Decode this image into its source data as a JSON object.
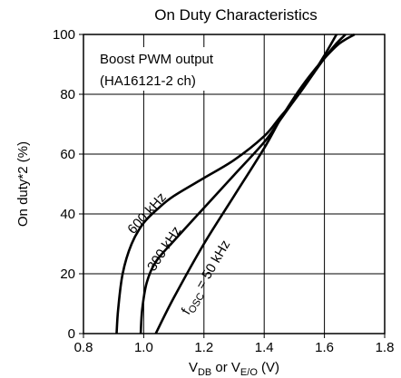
{
  "chart_data": {
    "type": "line",
    "title": "On Duty Characteristics",
    "xlabel": {
      "main": "V",
      "sub1": "DB",
      "mid": " or V",
      "sub2": "E/O",
      "unit": " (V)"
    },
    "ylabel": "On duty*2 (%)",
    "annotation": [
      "Boost PWM output",
      "(HA16121-2 ch)"
    ],
    "xlim": [
      0.8,
      1.8
    ],
    "ylim": [
      0,
      100
    ],
    "xticks": [
      "0.8",
      "1.0",
      "1.2",
      "1.4",
      "1.6",
      "1.8"
    ],
    "yticks": [
      "0",
      "20",
      "40",
      "60",
      "80",
      "100"
    ],
    "grid": true,
    "series": [
      {
        "name": "600 kHz",
        "label_text": "600 kHz",
        "x": [
          0.91,
          0.915,
          0.93,
          0.96,
          1.0,
          1.05,
          1.1,
          1.2,
          1.3,
          1.4,
          1.45,
          1.5,
          1.55,
          1.6,
          1.64
        ],
        "y": [
          0,
          8,
          20,
          30,
          37,
          42,
          46,
          52,
          58,
          66,
          72,
          78,
          85,
          93,
          100
        ]
      },
      {
        "name": "300 kHz",
        "label_text": "300 kHz",
        "x": [
          0.99,
          0.995,
          1.01,
          1.04,
          1.1,
          1.2,
          1.3,
          1.4,
          1.45,
          1.5,
          1.55,
          1.6,
          1.64,
          1.67
        ],
        "y": [
          0,
          8,
          17,
          24,
          31,
          42,
          53,
          64,
          71,
          78,
          85,
          92,
          97,
          100
        ]
      },
      {
        "name": "fOSC = 50 kHz",
        "label_text": {
          "pre": "f",
          "sub": "OSC",
          "post": " = 50 kHz"
        },
        "x": [
          1.04,
          1.1,
          1.2,
          1.3,
          1.4,
          1.45,
          1.5,
          1.55,
          1.6,
          1.65,
          1.7
        ],
        "y": [
          0,
          12,
          30,
          46,
          62,
          71,
          79,
          86,
          92,
          97,
          100
        ]
      }
    ]
  }
}
